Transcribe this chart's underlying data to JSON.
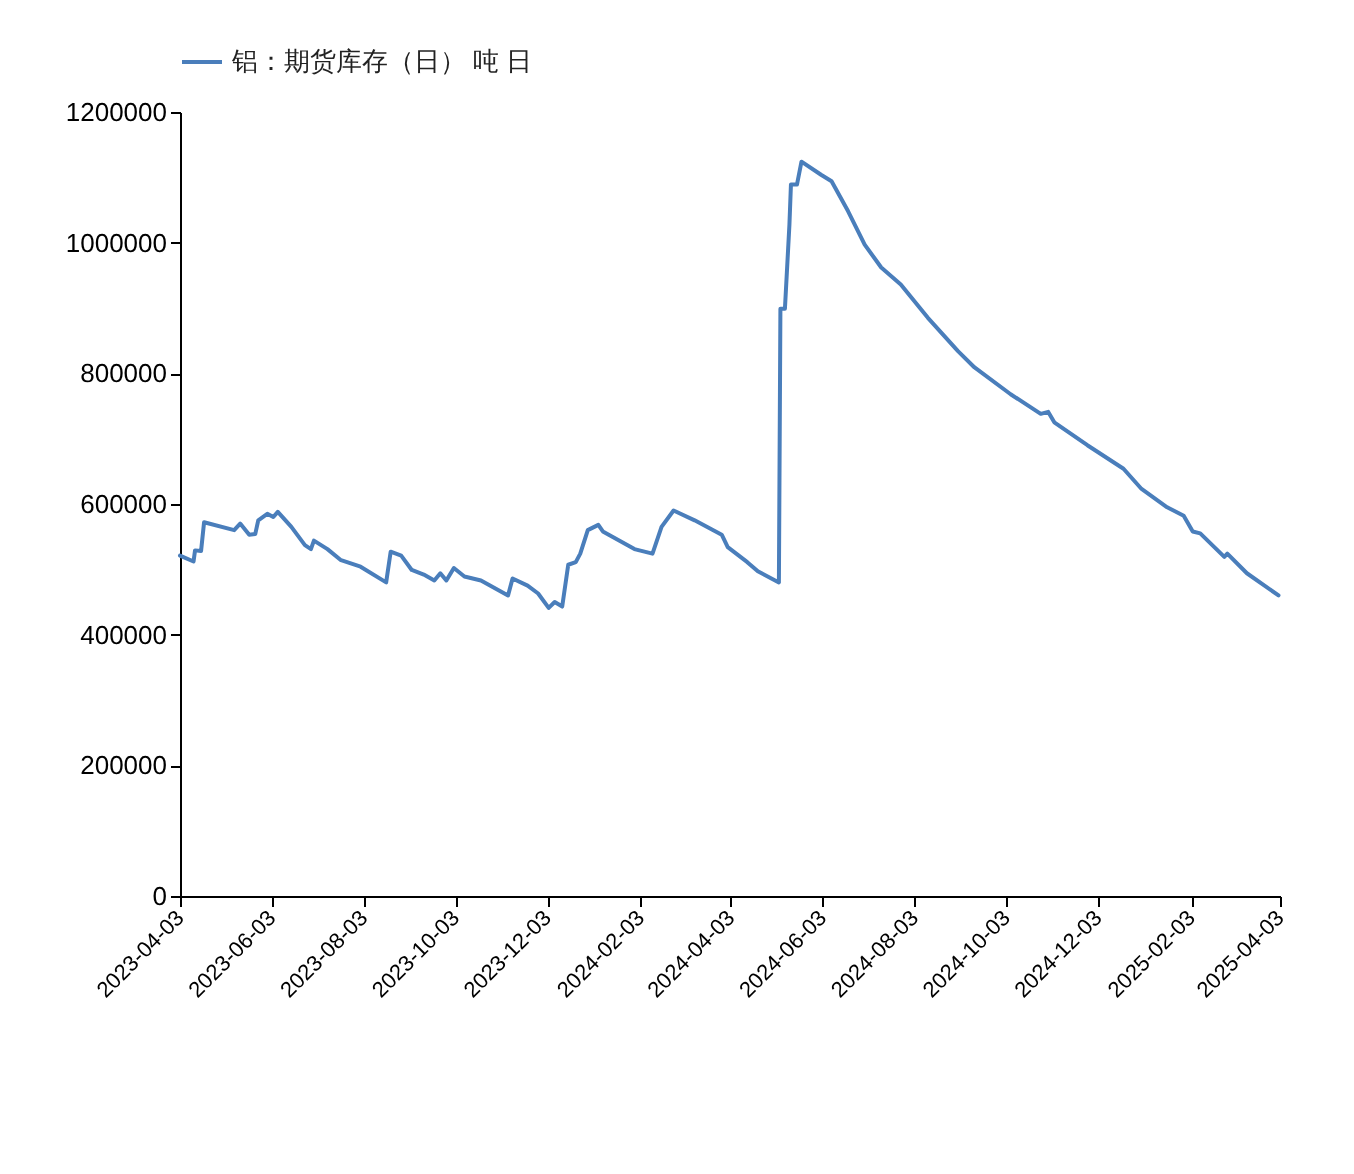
{
  "chart_data": {
    "type": "line",
    "legend": "top",
    "grid": false,
    "marker": "none",
    "line_style": "solid",
    "xlim": [
      "2023-04-03",
      "2025-04-03"
    ],
    "xticks": [
      "2023-04-03",
      "2023-06-03",
      "2023-08-03",
      "2023-10-03",
      "2023-12-03",
      "2024-02-03",
      "2024-04-03",
      "2024-06-03",
      "2024-08-03",
      "2024-10-03",
      "2024-12-03",
      "2025-02-03",
      "2025-04-03"
    ],
    "ylim": [
      0,
      1200000
    ],
    "yticks": [
      0,
      200000,
      400000,
      600000,
      800000,
      1000000,
      1200000
    ],
    "x": [
      "2023-04-03",
      "2023-04-12",
      "2023-04-13",
      "2023-04-17",
      "2023-04-19",
      "2023-05-09",
      "2023-05-13",
      "2023-05-19",
      "2023-05-23",
      "2023-05-25",
      "2023-05-31",
      "2023-06-04",
      "2023-06-07",
      "2023-06-16",
      "2023-06-25",
      "2023-06-29",
      "2023-07-01",
      "2023-07-10",
      "2023-07-19",
      "2023-08-01",
      "2023-08-18",
      "2023-08-21",
      "2023-08-28",
      "2023-09-04",
      "2023-09-12",
      "2023-09-19",
      "2023-09-23",
      "2023-09-27",
      "2023-10-02",
      "2023-10-09",
      "2023-10-20",
      "2023-11-07",
      "2023-11-10",
      "2023-11-20",
      "2023-11-27",
      "2023-12-04",
      "2023-12-08",
      "2023-12-13",
      "2023-12-17",
      "2023-12-22",
      "2023-12-25",
      "2023-12-30",
      "2024-01-06",
      "2024-01-09",
      "2024-01-30",
      "2024-02-11",
      "2024-02-17",
      "2024-02-25",
      "2024-03-10",
      "2024-03-28",
      "2024-04-01",
      "2024-04-14",
      "2024-04-21",
      "2024-05-05",
      "2024-05-06",
      "2024-05-09",
      "2024-05-12",
      "2024-05-13",
      "2024-05-17",
      "2024-05-20",
      "2024-06-02",
      "2024-06-09",
      "2024-06-20",
      "2024-07-01",
      "2024-07-12",
      "2024-07-25",
      "2024-08-12",
      "2024-09-01",
      "2024-09-12",
      "2024-10-06",
      "2024-10-26",
      "2024-10-31",
      "2024-11-04",
      "2024-11-26",
      "2024-12-20",
      "2025-01-01",
      "2025-01-18",
      "2025-01-29",
      "2025-02-04",
      "2025-02-09",
      "2025-02-25",
      "2025-02-27",
      "2025-03-12",
      "2025-04-02"
    ],
    "series": [
      {
        "name": "铝：期货库存（日） 吨 日",
        "color": "#4a7ebb",
        "values": [
          521000,
          512000,
          529000,
          528000,
          572000,
          560000,
          570000,
          553000,
          554000,
          575000,
          585000,
          580000,
          588000,
          565000,
          537000,
          531000,
          544000,
          531000,
          514000,
          504000,
          480000,
          527000,
          521000,
          499000,
          492000,
          483000,
          494000,
          483000,
          502000,
          489000,
          483000,
          460000,
          486000,
          475000,
          463000,
          441000,
          450000,
          443000,
          507000,
          511000,
          524000,
          560000,
          568000,
          558000,
          531000,
          524000,
          565000,
          590000,
          575000,
          553000,
          534000,
          511000,
          497000,
          480000,
          899000,
          899000,
          1028000,
          1089000,
          1089000,
          1124000,
          1104000,
          1094000,
          1048000,
          997000,
          962000,
          936000,
          885000,
          834000,
          809000,
          768000,
          738000,
          741000,
          725000,
          690000,
          654000,
          623000,
          595000,
          582000,
          558000,
          555000,
          519000,
          524000,
          494000,
          460000
        ]
      }
    ]
  }
}
